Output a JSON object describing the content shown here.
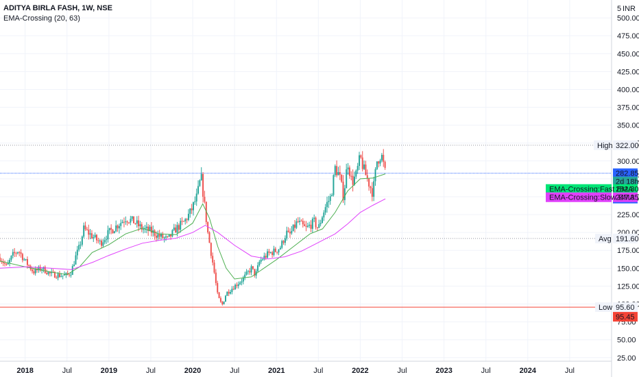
{
  "header": {
    "title": "ADITYA BIRLA FASH, 1W, NSE",
    "indicator": "EMA-Crossing (20, 63)"
  },
  "currency_label": "INR",
  "currency_marker": "5",
  "colors": {
    "up": "#26a69a",
    "down": "#ef5350",
    "fast_ema": "#4caf50",
    "slow_ema": "#e040fb",
    "price_line": "#2962ff",
    "low_line": "#f44336",
    "grid": "#f0f3fa",
    "text": "#131722"
  },
  "tags": {
    "high": {
      "label": "High",
      "value": "322.00"
    },
    "avg": {
      "label": "Avg",
      "value": "191.60"
    },
    "low": {
      "label": "Low",
      "value": "95.60"
    },
    "low_extra": "95.45",
    "price": "282.85",
    "countdown": "2d 18h",
    "fast": {
      "label": "EMA-Crossing:Fast EMA",
      "value": "282.30"
    },
    "slow": {
      "label": "EMA-Crossing:Slow EMA",
      "value": "247.35"
    },
    "blue": "281.25"
  },
  "chart_data": {
    "type": "candlestick",
    "title": "ADITYA BIRLA FASH, 1W, NSE",
    "y_ticks": [
      "25.00",
      "50.00",
      "75.00",
      "100.00",
      "125.00",
      "150.00",
      "175.00",
      "200.00",
      "225.00",
      "250.00",
      "275.00",
      "300.00",
      "325.00",
      "350.00",
      "375.00",
      "400.00",
      "425.00",
      "450.00",
      "475.00",
      "500.00"
    ],
    "ylim": [
      20,
      525
    ],
    "x_ticks": [
      {
        "label": "2018",
        "x": 2018.0,
        "bold": true
      },
      {
        "label": "Jul",
        "x": 2018.5,
        "bold": false
      },
      {
        "label": "2019",
        "x": 2019.0,
        "bold": true
      },
      {
        "label": "Jul",
        "x": 2019.5,
        "bold": false
      },
      {
        "label": "2020",
        "x": 2020.0,
        "bold": true
      },
      {
        "label": "Jul",
        "x": 2020.5,
        "bold": false
      },
      {
        "label": "2021",
        "x": 2021.0,
        "bold": true
      },
      {
        "label": "Jul",
        "x": 2021.5,
        "bold": false
      },
      {
        "label": "2022",
        "x": 2022.0,
        "bold": true
      },
      {
        "label": "Jul",
        "x": 2022.5,
        "bold": false
      },
      {
        "label": "2023",
        "x": 2023.0,
        "bold": true
      },
      {
        "label": "Jul",
        "x": 2023.5,
        "bold": false
      },
      {
        "label": "2024",
        "x": 2024.0,
        "bold": true
      },
      {
        "label": "Jul",
        "x": 2024.5,
        "bold": false
      }
    ],
    "xlim": [
      2017.7,
      2025.0
    ],
    "price_path": [
      [
        2017.7,
        165
      ],
      [
        2017.78,
        152
      ],
      [
        2017.85,
        168
      ],
      [
        2017.92,
        175
      ],
      [
        2018.0,
        160
      ],
      [
        2018.1,
        145
      ],
      [
        2018.2,
        150
      ],
      [
        2018.3,
        142
      ],
      [
        2018.4,
        140
      ],
      [
        2018.5,
        140
      ],
      [
        2018.55,
        145
      ],
      [
        2018.6,
        165
      ],
      [
        2018.65,
        180
      ],
      [
        2018.7,
        205
      ],
      [
        2018.8,
        195
      ],
      [
        2018.9,
        185
      ],
      [
        2019.0,
        200
      ],
      [
        2019.1,
        210
      ],
      [
        2019.2,
        220
      ],
      [
        2019.3,
        215
      ],
      [
        2019.4,
        205
      ],
      [
        2019.5,
        202
      ],
      [
        2019.6,
        195
      ],
      [
        2019.7,
        190
      ],
      [
        2019.8,
        205
      ],
      [
        2019.9,
        215
      ],
      [
        2019.98,
        230
      ],
      [
        2020.05,
        250
      ],
      [
        2020.1,
        278
      ],
      [
        2020.13,
        250
      ],
      [
        2020.18,
        200
      ],
      [
        2020.25,
        150
      ],
      [
        2020.3,
        110
      ],
      [
        2020.35,
        98
      ],
      [
        2020.4,
        115
      ],
      [
        2020.5,
        125
      ],
      [
        2020.6,
        135
      ],
      [
        2020.7,
        150
      ],
      [
        2020.75,
        140
      ],
      [
        2020.8,
        160
      ],
      [
        2020.9,
        170
      ],
      [
        2021.0,
        175
      ],
      [
        2021.05,
        180
      ],
      [
        2021.12,
        200
      ],
      [
        2021.15,
        195
      ],
      [
        2021.25,
        215
      ],
      [
        2021.35,
        205
      ],
      [
        2021.45,
        215
      ],
      [
        2021.5,
        205
      ],
      [
        2021.55,
        225
      ],
      [
        2021.6,
        240
      ],
      [
        2021.65,
        250
      ],
      [
        2021.7,
        290
      ],
      [
        2021.75,
        280
      ],
      [
        2021.8,
        250
      ],
      [
        2021.85,
        300
      ],
      [
        2021.9,
        270
      ],
      [
        2021.95,
        280
      ],
      [
        2022.0,
        305
      ],
      [
        2022.05,
        285
      ],
      [
        2022.1,
        270
      ],
      [
        2022.15,
        255
      ],
      [
        2022.2,
        300
      ],
      [
        2022.25,
        310
      ],
      [
        2022.3,
        282
      ]
    ],
    "fast_ema": [
      [
        2017.7,
        160
      ],
      [
        2018.0,
        152
      ],
      [
        2018.3,
        145
      ],
      [
        2018.5,
        141
      ],
      [
        2018.65,
        152
      ],
      [
        2018.8,
        172
      ],
      [
        2019.0,
        183
      ],
      [
        2019.2,
        198
      ],
      [
        2019.4,
        206
      ],
      [
        2019.6,
        198
      ],
      [
        2019.8,
        197
      ],
      [
        2020.0,
        213
      ],
      [
        2020.12,
        240
      ],
      [
        2020.2,
        220
      ],
      [
        2020.3,
        180
      ],
      [
        2020.4,
        150
      ],
      [
        2020.5,
        135
      ],
      [
        2020.7,
        138
      ],
      [
        2020.85,
        150
      ],
      [
        2021.0,
        162
      ],
      [
        2021.2,
        180
      ],
      [
        2021.4,
        198
      ],
      [
        2021.55,
        205
      ],
      [
        2021.7,
        228
      ],
      [
        2021.85,
        258
      ],
      [
        2022.0,
        275
      ],
      [
        2022.15,
        276
      ],
      [
        2022.3,
        282
      ]
    ],
    "slow_ema": [
      [
        2017.7,
        150
      ],
      [
        2018.0,
        152
      ],
      [
        2018.3,
        150
      ],
      [
        2018.55,
        148
      ],
      [
        2018.8,
        158
      ],
      [
        2019.0,
        168
      ],
      [
        2019.2,
        177
      ],
      [
        2019.4,
        185
      ],
      [
        2019.6,
        189
      ],
      [
        2019.8,
        192
      ],
      [
        2020.0,
        200
      ],
      [
        2020.15,
        210
      ],
      [
        2020.3,
        200
      ],
      [
        2020.5,
        182
      ],
      [
        2020.7,
        167
      ],
      [
        2020.9,
        163
      ],
      [
        2021.1,
        166
      ],
      [
        2021.3,
        174
      ],
      [
        2021.5,
        186
      ],
      [
        2021.7,
        198
      ],
      [
        2021.85,
        212
      ],
      [
        2022.0,
        228
      ],
      [
        2022.15,
        238
      ],
      [
        2022.3,
        247
      ]
    ],
    "levels": {
      "high": 322.0,
      "avg": 191.6,
      "low": 95.6,
      "price": 282.85
    }
  }
}
